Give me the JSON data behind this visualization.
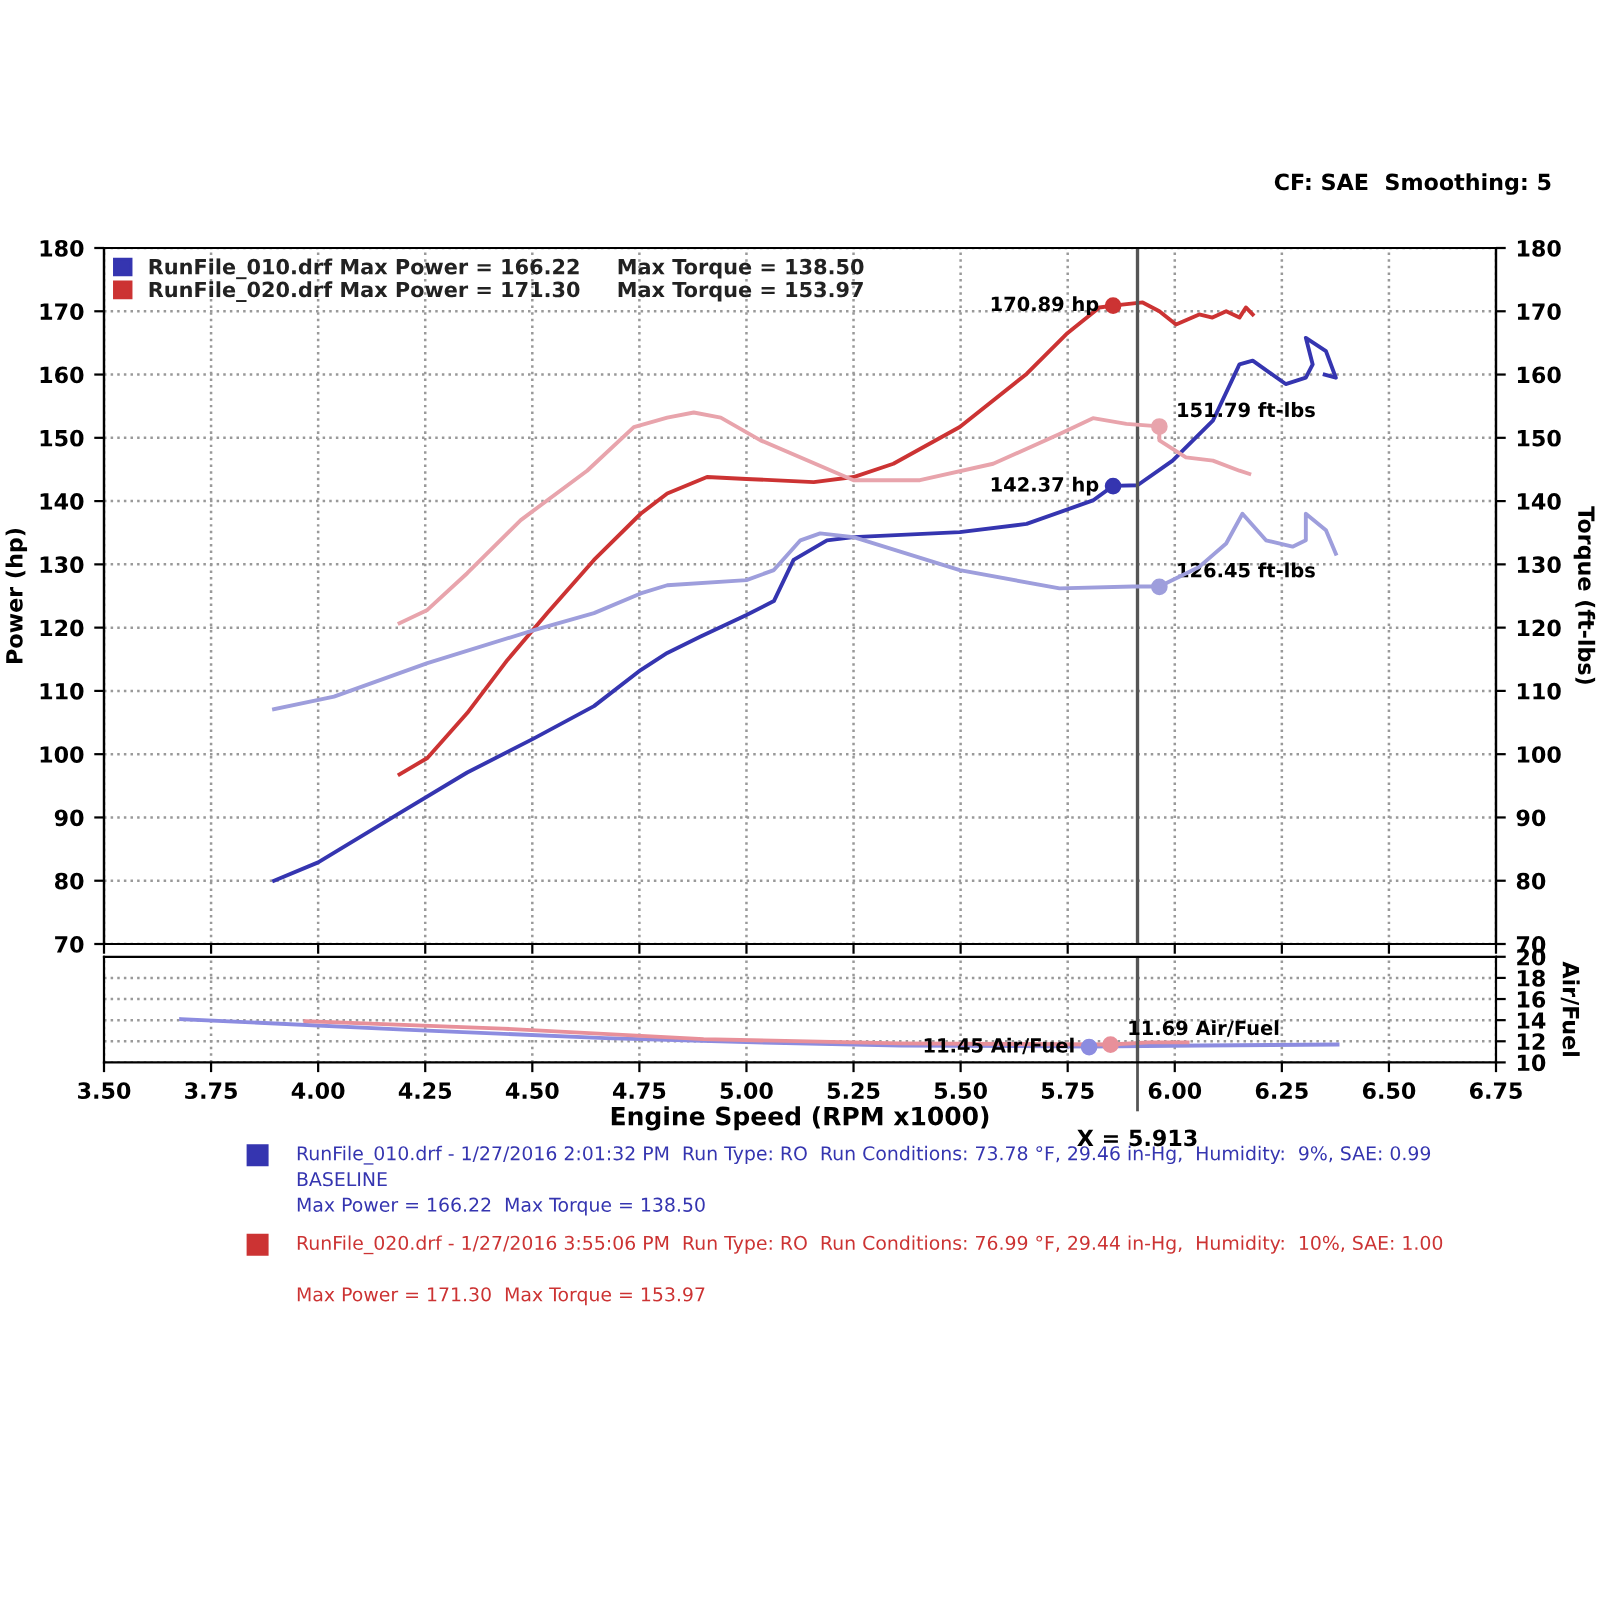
{
  "chart_data": [
    {
      "type": "line",
      "ylabel": "Power (hp)",
      "y2label": "Torque (ft-lbs)",
      "xlim": [
        3.5,
        6.75
      ],
      "xticks": [
        3.5,
        3.75,
        4.0,
        4.25,
        4.5,
        4.75,
        5.0,
        5.25,
        5.5,
        5.75,
        6.0,
        6.25,
        6.5,
        6.75
      ],
      "ylim": [
        70,
        180
      ],
      "yticks": [
        70,
        80,
        90,
        100,
        110,
        120,
        130,
        140,
        150,
        160,
        170,
        180
      ],
      "y2lim": [
        70,
        180
      ],
      "y2ticks": [
        70,
        80,
        90,
        100,
        110,
        120,
        130,
        140,
        150,
        160,
        170,
        180
      ],
      "tick_labels": "y",
      "grid": true,
      "legend": "top left",
      "line_style": "solid",
      "marker": "none",
      "ref_lines": [
        {
          "axis": "x",
          "value": 5.913,
          "color": "#555555"
        }
      ],
      "annotations": [
        "CF: SAE  Smoothing: 5",
        {
          "text": "170.89 hp",
          "x": 5.856,
          "y": 170.89
        },
        {
          "text": "142.37 hp",
          "x": 5.856,
          "y": 142.37
        },
        {
          "text": "151.79 ft-lbs",
          "x": 5.964,
          "y": 151.79
        },
        {
          "text": "126.45 ft-lbs",
          "x": 5.964,
          "y": 126.45
        }
      ],
      "series": [
        {
          "name": "RunFile_010.drf Max Power = 166.22     Max Torque = 138.50",
          "color": "#3535b0",
          "x": [
            3.897,
            4.0,
            4.193,
            4.348,
            4.504,
            4.644,
            4.753,
            4.815,
            4.893,
            5.0,
            5.064,
            5.11,
            5.188,
            5.25,
            5.498,
            5.654,
            5.809,
            5.856,
            5.913,
            5.995,
            6.089,
            6.151,
            6.182,
            6.259,
            6.306,
            6.322,
            6.306,
            6.353,
            6.376,
            6.35
          ],
          "values": [
            80,
            82.9,
            90.8,
            97.1,
            102.5,
            107.6,
            113.3,
            116,
            118.6,
            122,
            124.2,
            130.7,
            133.8,
            134.3,
            135.1,
            136.4,
            140.1,
            142.4,
            142.5,
            146.4,
            152.7,
            161.6,
            162.2,
            158.5,
            159.5,
            161.6,
            165.8,
            163.7,
            159.5,
            160
          ]
        },
        {
          "name": "RunFile_020.drf Max Power = 171.30     Max Torque = 153.97",
          "color": "#cc3333",
          "x": [
            4.19,
            4.255,
            4.348,
            4.442,
            4.535,
            4.644,
            4.753,
            4.815,
            4.908,
            5.0,
            5.157,
            5.25,
            5.343,
            5.498,
            5.654,
            5.747,
            5.824,
            5.856,
            5.925,
            5.964,
            6.003,
            6.057,
            6.088,
            6.12,
            6.151,
            6.166,
            6.182
          ],
          "values": [
            96.8,
            99.4,
            106.5,
            114.9,
            122.3,
            130.7,
            138,
            141.2,
            143.8,
            143.5,
            143,
            143.8,
            145.9,
            151.7,
            160.1,
            166.4,
            170.6,
            170.9,
            171.4,
            170,
            167.9,
            169.5,
            169,
            170,
            169,
            170.6,
            169.5
          ]
        },
        {
          "axis": "y2",
          "color": "#9e9edc",
          "x": [
            3.897,
            4.037,
            4.255,
            4.504,
            4.644,
            4.753,
            4.815,
            5.0,
            5.064,
            5.126,
            5.172,
            5.25,
            5.498,
            5.731,
            5.902,
            5.964,
            6.057,
            6.12,
            6.158,
            6.213,
            6.275,
            6.306,
            6.306,
            6.353,
            6.376
          ],
          "values": [
            107.1,
            109.1,
            114.4,
            119.6,
            122.3,
            125.4,
            126.7,
            127.5,
            129.1,
            133.8,
            134.9,
            134.3,
            129.1,
            126.2,
            126.5,
            126.5,
            129.6,
            133.3,
            138,
            133.8,
            132.8,
            133.8,
            138,
            135.4,
            131.7
          ]
        },
        {
          "axis": "y2",
          "color": "#e8a4ac",
          "x": [
            4.19,
            4.255,
            4.348,
            4.473,
            4.628,
            4.737,
            4.815,
            4.877,
            4.94,
            5.033,
            5.25,
            5.405,
            5.576,
            5.731,
            5.809,
            5.887,
            5.964,
            5.964,
            6.026,
            6.089,
            6.151,
            6.174
          ],
          "values": [
            120.7,
            122.8,
            128.6,
            137,
            144.8,
            151.7,
            153.2,
            154,
            153.2,
            149.6,
            143.3,
            143.3,
            145.9,
            150.6,
            153.1,
            152.2,
            151.8,
            149.6,
            146.9,
            146.4,
            144.8,
            144.3
          ]
        }
      ]
    },
    {
      "type": "line",
      "xlabel": "Engine Speed (RPM x1000)",
      "ylabel": "Air/Fuel",
      "xlim": [
        3.5,
        6.75
      ],
      "xticks": [
        {
          "value": 3.5,
          "label": "3.50"
        },
        {
          "value": 3.75,
          "label": "3.75"
        },
        {
          "value": 4.0,
          "label": "4.00"
        },
        {
          "value": 4.25,
          "label": "4.25"
        },
        {
          "value": 4.5,
          "label": "4.50"
        },
        {
          "value": 4.75,
          "label": "4.75"
        },
        {
          "value": 5.0,
          "label": "5.00"
        },
        {
          "value": 5.25,
          "label": "5.25"
        },
        {
          "value": 5.5,
          "label": "5.50"
        },
        {
          "value": 5.75,
          "label": "5.75"
        },
        {
          "value": 6.0,
          "label": "6.00"
        },
        {
          "value": 6.25,
          "label": "6.25"
        },
        {
          "value": 6.5,
          "label": "6.50"
        },
        {
          "value": 6.75,
          "label": "6.75"
        }
      ],
      "ylim": [
        10,
        20
      ],
      "yticks": [
        10,
        12,
        14,
        16,
        18,
        20
      ],
      "grid": true,
      "line_style": "solid",
      "marker": "none",
      "ref_lines": [
        {
          "axis": "x",
          "value": 5.913,
          "label": "X = 5.913",
          "color": "#555555"
        }
      ],
      "annotations": [
        {
          "text": "11.45 Air/Fuel",
          "x": 5.8,
          "y": 11.45
        },
        {
          "text": "11.69 Air/Fuel",
          "x": 5.85,
          "y": 11.69
        },
        "RunFile_010.drf - 1/27/2016 2:01:32 PM  Run Type: RO  Run Conditions: 73.78 °F, 29.46 in-Hg,  Humidity:  9%, SAE: 0.99",
        "BASELINE",
        "Max Power = 166.22  Max Torque = 138.50",
        "RunFile_020.drf - 1/27/2016 3:55:06 PM  Run Type: RO  Run Conditions: 76.99 °F, 29.44 in-Hg,  Humidity:  10%, SAE: 1.00",
        "Max Power = 171.30  Max Torque = 153.97"
      ],
      "series": [
        {
          "color": "#8c8ce0",
          "x": [
            3.68,
            4.2,
            4.67,
            5.02,
            5.36,
            5.8,
            6.06,
            6.38
          ],
          "values": [
            14.1,
            13.1,
            12.3,
            11.9,
            11.6,
            11.5,
            11.6,
            11.7
          ]
        },
        {
          "color": "#e8909a",
          "x": [
            3.97,
            4.43,
            4.9,
            5.36,
            5.85,
            5.94,
            6.03
          ],
          "values": [
            13.9,
            13.2,
            12.2,
            11.8,
            11.7,
            11.9,
            11.9
          ]
        }
      ]
    }
  ]
}
